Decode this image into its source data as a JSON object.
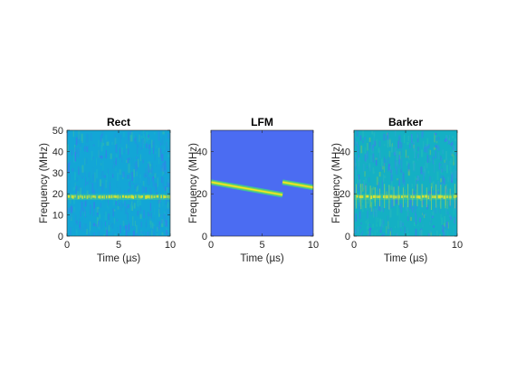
{
  "figure": {
    "background": "#ffffff"
  },
  "chart_data": [
    {
      "type": "heatmap",
      "title": "Rect",
      "xlabel": "Time (µs)",
      "ylabel": "Frequency (MHz)",
      "xlim": [
        0,
        10
      ],
      "ylim": [
        0,
        50
      ],
      "xticks": [
        0,
        5,
        10
      ],
      "yticks": [
        0,
        10,
        20,
        30,
        40,
        50
      ],
      "grid": false,
      "background_color": "#13a6d6",
      "bands": [
        {
          "kind": "pulsed_horizontal",
          "frequency": 18.5,
          "t_start": 0,
          "t_end": 10,
          "color": "#dfe52a"
        }
      ]
    },
    {
      "type": "heatmap",
      "title": "LFM",
      "xlabel": "Time (µs)",
      "ylabel": "Frequency (MHz)",
      "xlim": [
        0,
        10
      ],
      "ylim": [
        0,
        50
      ],
      "xticks": [
        0,
        5,
        10
      ],
      "yticks": [
        0,
        20,
        40
      ],
      "grid": false,
      "background_color": "#4b6cf2",
      "bands": [
        {
          "kind": "chirp",
          "t_start": 0,
          "t_end": 7,
          "f_start": 25.5,
          "f_end": 19.5,
          "color": "#f5e61f"
        },
        {
          "kind": "chirp",
          "t_start": 7,
          "t_end": 10,
          "f_start": 25.5,
          "f_end": 23.0,
          "color": "#f5e61f"
        }
      ]
    },
    {
      "type": "heatmap",
      "title": "Barker",
      "xlabel": "Time (µs)",
      "ylabel": "Frequency (MHz)",
      "xlim": [
        0,
        10
      ],
      "ylim": [
        0,
        50
      ],
      "xticks": [
        0,
        5,
        10
      ],
      "yticks": [
        0,
        20,
        40
      ],
      "grid": false,
      "background_color": "#14b0c4",
      "bands": [
        {
          "kind": "pulsed_horizontal",
          "frequency": 18.5,
          "t_start": 0,
          "t_end": 10,
          "color": "#e7e52a"
        }
      ]
    }
  ]
}
